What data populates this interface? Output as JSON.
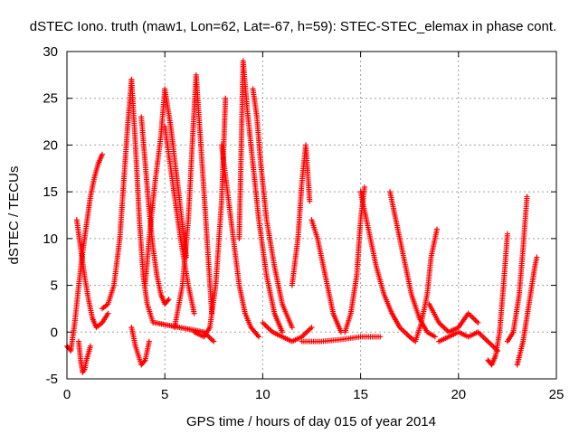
{
  "chart_data": {
    "type": "scatter",
    "title": "dSTEC Iono. truth (maw1, Lon=62, Lat=-67, h=59): STEC-STEC_elemax in phase cont.",
    "xlabel": "GPS time / hours of day 015 of year 2014",
    "ylabel": "dSTEC  / TECUs",
    "xlim": [
      0,
      25
    ],
    "ylim": [
      -5,
      30
    ],
    "xticks": [
      0,
      5,
      10,
      15,
      20,
      25
    ],
    "yticks": [
      -5,
      0,
      5,
      10,
      15,
      20,
      25,
      30
    ],
    "grid": true,
    "marker": "+",
    "color": "#ff0000",
    "series": [
      {
        "x": [
          0.0,
          0.2,
          0.4,
          0.6,
          0.8,
          1.0,
          1.2,
          1.4,
          1.6,
          1.8
        ],
        "y": [
          -1.5,
          -2.0,
          1.0,
          5.0,
          8.5,
          11.5,
          14.5,
          16.5,
          18.0,
          19.0
        ]
      },
      {
        "x": [
          0.5,
          0.7,
          0.9,
          1.1,
          1.3,
          1.5,
          1.8,
          2.1
        ],
        "y": [
          12.0,
          9.0,
          6.0,
          3.5,
          1.5,
          0.5,
          1.0,
          2.0
        ]
      },
      {
        "x": [
          0.6,
          0.7,
          0.8,
          0.9,
          1.0,
          1.2
        ],
        "y": [
          -1.0,
          -3.0,
          -4.3,
          -4.0,
          -3.0,
          -1.5
        ]
      },
      {
        "x": [
          1.8,
          2.1,
          2.4,
          2.7,
          2.9,
          3.1,
          3.3
        ],
        "y": [
          2.5,
          3.0,
          5.0,
          10.0,
          16.0,
          22.0,
          27.0
        ]
      },
      {
        "x": [
          3.3,
          3.5,
          3.7,
          3.9,
          4.1,
          4.4
        ],
        "y": [
          27.0,
          20.0,
          12.0,
          6.0,
          3.0,
          1.0
        ]
      },
      {
        "x": [
          3.3,
          3.5,
          3.8,
          4.0,
          4.2
        ],
        "y": [
          0.5,
          -1.5,
          -3.5,
          -3.0,
          -1.0
        ]
      },
      {
        "x": [
          3.8,
          4.0,
          4.2,
          4.4,
          4.6,
          4.8,
          5.0,
          5.2
        ],
        "y": [
          23.0,
          18.0,
          13.0,
          9.0,
          6.0,
          4.0,
          3.0,
          3.5
        ]
      },
      {
        "x": [
          4.0,
          4.2,
          4.5,
          4.8,
          5.0,
          5.3,
          5.7,
          6.1
        ],
        "y": [
          5.0,
          10.0,
          16.0,
          21.0,
          26.0,
          22.0,
          15.0,
          8.0
        ]
      },
      {
        "x": [
          5.0,
          5.4,
          5.8,
          6.2,
          6.5
        ],
        "y": [
          22.0,
          16.0,
          10.0,
          5.0,
          2.0
        ]
      },
      {
        "x": [
          5.5,
          5.9,
          6.2,
          6.4,
          6.6,
          7.0,
          7.4
        ],
        "y": [
          0.5,
          5.0,
          12.0,
          20.0,
          27.5,
          15.0,
          2.0
        ]
      },
      {
        "x": [
          4.5,
          5.0,
          5.5,
          6.0,
          6.5,
          7.0,
          7.5
        ],
        "y": [
          1.0,
          0.8,
          0.6,
          0.4,
          0.2,
          0.0,
          -1.0
        ]
      },
      {
        "x": [
          6.5,
          7.0,
          7.3,
          7.6,
          7.9,
          8.1
        ],
        "y": [
          0.0,
          -0.5,
          0.5,
          5.0,
          14.0,
          25.0
        ]
      },
      {
        "x": [
          7.9,
          8.2,
          8.5,
          8.8,
          9.1,
          9.4,
          9.8
        ],
        "y": [
          20.0,
          15.0,
          10.0,
          5.0,
          2.0,
          0.5,
          -0.5
        ]
      },
      {
        "x": [
          8.8,
          9.0,
          9.2,
          9.5,
          9.8,
          10.2,
          10.6,
          11.0
        ],
        "y": [
          10.0,
          29.0,
          24.0,
          18.0,
          12.0,
          6.0,
          2.0,
          0.0
        ]
      },
      {
        "x": [
          9.5,
          9.7,
          9.9,
          10.2,
          10.6,
          11.0,
          11.5
        ],
        "y": [
          26.0,
          23.0,
          18.0,
          12.0,
          7.0,
          3.0,
          0.5
        ]
      },
      {
        "x": [
          10.0,
          10.5,
          11.0,
          11.5,
          12.0,
          12.5
        ],
        "y": [
          1.0,
          0.0,
          -0.5,
          -1.0,
          -0.5,
          0.5
        ]
      },
      {
        "x": [
          11.5,
          11.8,
          12.0,
          12.2,
          12.4
        ],
        "y": [
          5.0,
          10.0,
          16.0,
          20.0,
          14.0
        ]
      },
      {
        "x": [
          12.5,
          12.8,
          13.2,
          13.6,
          14.0
        ],
        "y": [
          12.0,
          10.0,
          6.0,
          2.0,
          0.0
        ]
      },
      {
        "x": [
          12.0,
          13.0,
          14.0,
          15.0,
          16.0
        ],
        "y": [
          -1.0,
          -1.0,
          -0.8,
          -0.5,
          -0.5
        ]
      },
      {
        "x": [
          14.2,
          14.5,
          14.8,
          15.0,
          15.2
        ],
        "y": [
          0.0,
          2.0,
          6.0,
          12.0,
          15.5
        ]
      },
      {
        "x": [
          15.0,
          15.4,
          15.8,
          16.2,
          16.6,
          17.0,
          17.5
        ],
        "y": [
          15.0,
          11.0,
          7.0,
          4.0,
          2.0,
          0.5,
          -0.5
        ]
      },
      {
        "x": [
          16.5,
          16.8,
          17.2,
          17.6,
          18.0,
          18.4,
          18.8
        ],
        "y": [
          15.0,
          12.0,
          8.0,
          4.0,
          1.5,
          0.0,
          -0.5
        ]
      },
      {
        "x": [
          17.5,
          17.8,
          18.1,
          18.4,
          18.6,
          18.9
        ],
        "y": [
          -0.5,
          -1.0,
          1.0,
          4.0,
          8.0,
          11.0
        ]
      },
      {
        "x": [
          18.5,
          19.0,
          19.5,
          20.0,
          20.5,
          21.0
        ],
        "y": [
          3.0,
          1.0,
          0.0,
          0.5,
          2.0,
          1.0
        ]
      },
      {
        "x": [
          19.0,
          19.5,
          20.0,
          20.5,
          21.0,
          21.5,
          22.0
        ],
        "y": [
          -1.0,
          -0.5,
          0.0,
          -0.5,
          0.0,
          -1.0,
          -2.0
        ]
      },
      {
        "x": [
          21.5,
          21.7,
          21.9,
          22.1,
          22.3,
          22.5
        ],
        "y": [
          -3.0,
          -3.5,
          -2.5,
          0.0,
          5.0,
          10.5
        ]
      },
      {
        "x": [
          22.5,
          22.8,
          23.1,
          23.3,
          23.5
        ],
        "y": [
          -1.0,
          0.0,
          4.0,
          9.0,
          14.5
        ]
      },
      {
        "x": [
          23.0,
          23.3,
          23.6,
          23.9,
          24.0
        ],
        "y": [
          -3.5,
          -1.0,
          3.0,
          7.0,
          8.0
        ]
      }
    ]
  }
}
